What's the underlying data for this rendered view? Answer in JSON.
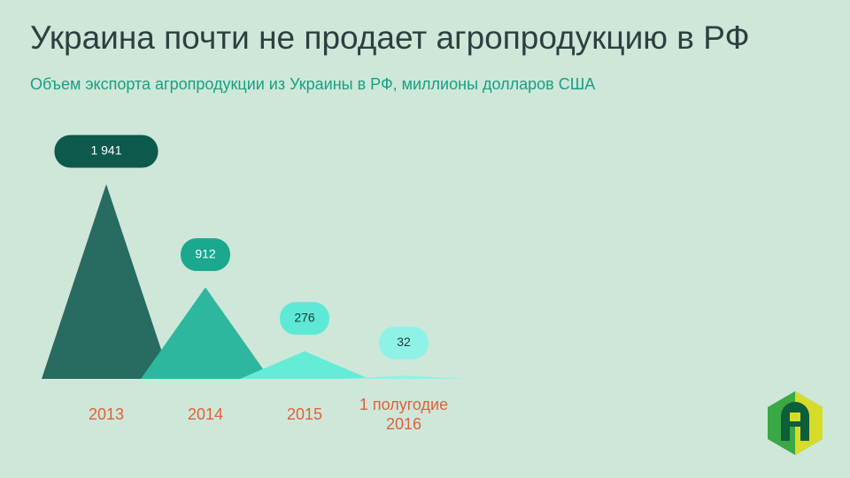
{
  "chart_data": {
    "type": "triangle",
    "title": "Украина почти не продает агропродукцию в РФ",
    "subtitle": "Объем экспорта агропродукции  из Украины в РФ, миллионы  долларов  США",
    "categories": [
      "2013",
      "2014",
      "2015",
      "1 полугодие 2016"
    ],
    "values": [
      1941,
      912,
      276,
      32
    ],
    "value_labels": [
      "1 941",
      "912",
      "276",
      "32"
    ],
    "colors": [
      "#276b61",
      "#2db79e",
      "#64ecd8",
      "#8ff2e4"
    ],
    "label_colors": [
      "#0d5a4c",
      "#1aa88f",
      "#5ee9d6",
      "#8ff2e6"
    ]
  }
}
